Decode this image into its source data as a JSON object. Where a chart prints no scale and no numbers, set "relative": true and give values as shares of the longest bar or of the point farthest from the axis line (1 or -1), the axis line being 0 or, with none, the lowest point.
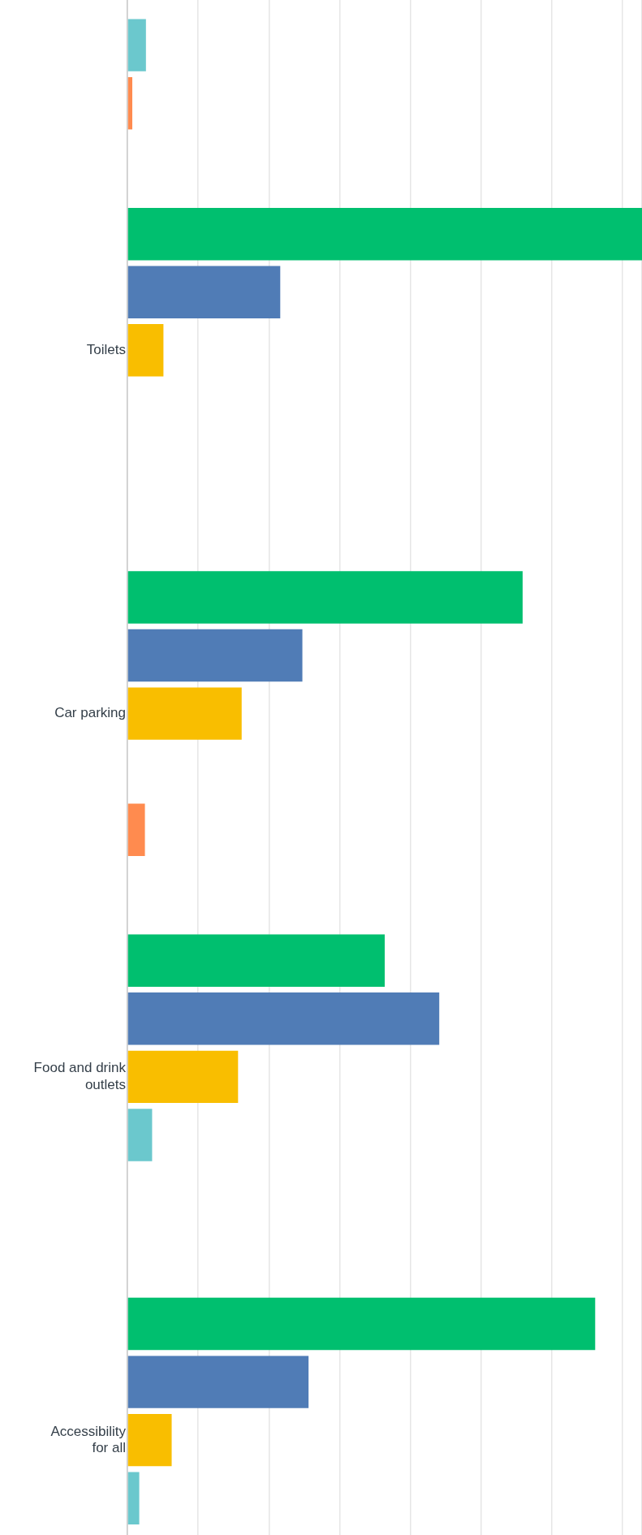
{
  "chart_data": {
    "type": "bar",
    "orientation": "horizontal",
    "relative": true,
    "grid": "x",
    "legend": false,
    "categories": [
      null,
      "Toilets",
      "Car parking",
      "Food and drink outlets",
      "Accessibility for all"
    ],
    "series": [
      {
        "color": "#00bf6f",
        "values": [
          null,
          1,
          0.768,
          0.5,
          0.909
        ]
      },
      {
        "color": "#507cb6",
        "values": [
          null,
          0.297,
          0.34,
          0.606,
          0.352
        ]
      },
      {
        "color": "#f9be00",
        "values": [
          null,
          0.07,
          0.222,
          0.215,
          0.086
        ]
      },
      {
        "color": "#6bc8cd",
        "values": [
          0.036,
          0,
          0,
          0.048,
          0.023
        ]
      },
      {
        "color": "#ff8b4f",
        "values": [
          0.0095,
          0,
          0.034,
          0,
          null
        ]
      }
    ]
  }
}
